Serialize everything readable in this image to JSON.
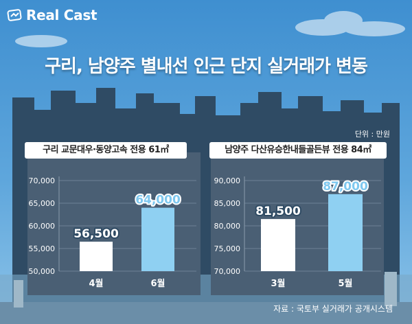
{
  "brand": {
    "name": "Real Cast"
  },
  "title": "구리, 남양주 별내선 인근 단지 실거래가 변동",
  "unit_note": "단위 : 만원",
  "source": "자료 : 국토부 실거래가 공개시스템",
  "colors": {
    "sky": "#4f9bd6",
    "skyline": "#2f4b64",
    "panel": "#4a5f74",
    "bar_white": "#ffffff",
    "bar_blue": "#8fd0f2",
    "accent_blue": "#7fc8ef"
  },
  "chart_data": [
    {
      "type": "bar",
      "title": "구리 교문대우·동양고속 전용 61㎡",
      "categories": [
        "4월",
        "6월"
      ],
      "values": [
        56500,
        64000
      ],
      "value_labels": [
        "56,500",
        "64,000"
      ],
      "ylim": [
        50000,
        70000
      ],
      "yticks": [
        50000,
        55000,
        60000,
        65000,
        70000
      ],
      "ytick_labels": [
        "50,000",
        "55,000",
        "60,000",
        "65,000",
        "70,000"
      ],
      "grid": true,
      "bar_colors": [
        "#ffffff",
        "#8fd0f2"
      ]
    },
    {
      "type": "bar",
      "title": "남양주 다산유승한내들골든뷰 전용 84㎡",
      "categories": [
        "3월",
        "5월"
      ],
      "values": [
        81500,
        87000
      ],
      "value_labels": [
        "81,500",
        "87,000"
      ],
      "ylim": [
        70000,
        90000
      ],
      "yticks": [
        70000,
        75000,
        80000,
        85000,
        90000
      ],
      "ytick_labels": [
        "70,000",
        "75,000",
        "80,000",
        "85,000",
        "90,000"
      ],
      "grid": true,
      "bar_colors": [
        "#ffffff",
        "#8fd0f2"
      ]
    }
  ]
}
